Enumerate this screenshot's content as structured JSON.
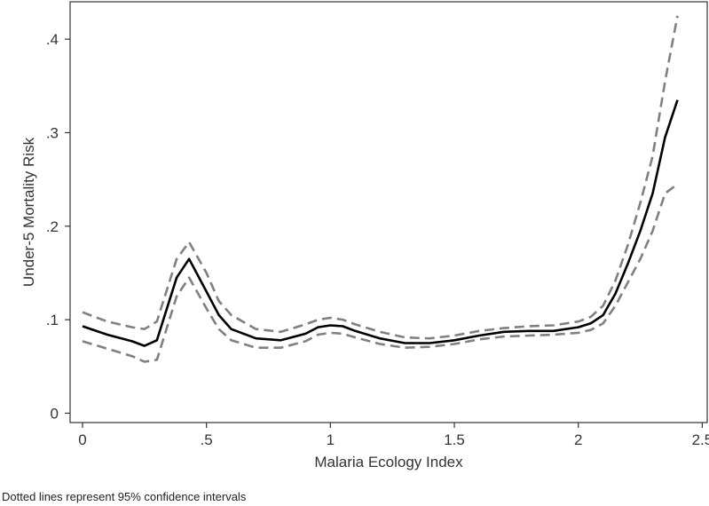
{
  "chart_data": {
    "type": "line",
    "xlabel": "Malaria Ecology Index",
    "ylabel": "Under-5 Mortality Risk",
    "xlim": [
      -0.05,
      2.52
    ],
    "ylim": [
      -0.01,
      0.44
    ],
    "xticks": [
      0,
      0.5,
      1,
      1.5,
      2,
      2.5
    ],
    "xtick_labels": [
      "0",
      ".5",
      "1",
      "1.5",
      "2",
      "2.5"
    ],
    "yticks": [
      0,
      0.1,
      0.2,
      0.3,
      0.4
    ],
    "ytick_labels": [
      "0",
      ".1",
      ".2",
      ".3",
      ".4"
    ],
    "grid": false,
    "note": "Dotted lines represent 95% confidence intervals",
    "series": [
      {
        "role": "estimate",
        "color": "#000000",
        "style": "solid",
        "points": [
          [
            0,
            0.093
          ],
          [
            0.1,
            0.084
          ],
          [
            0.2,
            0.077
          ],
          [
            0.25,
            0.072
          ],
          [
            0.3,
            0.078
          ],
          [
            0.38,
            0.145
          ],
          [
            0.43,
            0.165
          ],
          [
            0.5,
            0.13
          ],
          [
            0.55,
            0.105
          ],
          [
            0.6,
            0.09
          ],
          [
            0.7,
            0.08
          ],
          [
            0.8,
            0.078
          ],
          [
            0.9,
            0.085
          ],
          [
            0.95,
            0.092
          ],
          [
            1.0,
            0.094
          ],
          [
            1.05,
            0.093
          ],
          [
            1.1,
            0.088
          ],
          [
            1.2,
            0.08
          ],
          [
            1.3,
            0.075
          ],
          [
            1.4,
            0.075
          ],
          [
            1.5,
            0.078
          ],
          [
            1.6,
            0.083
          ],
          [
            1.7,
            0.087
          ],
          [
            1.8,
            0.088
          ],
          [
            1.9,
            0.088
          ],
          [
            2.0,
            0.092
          ],
          [
            2.05,
            0.096
          ],
          [
            2.1,
            0.105
          ],
          [
            2.15,
            0.128
          ],
          [
            2.2,
            0.16
          ],
          [
            2.25,
            0.195
          ],
          [
            2.3,
            0.235
          ],
          [
            2.35,
            0.295
          ],
          [
            2.4,
            0.335
          ]
        ]
      },
      {
        "role": "upper-95-ci",
        "color": "#808080",
        "style": "dashed",
        "points": [
          [
            0,
            0.108
          ],
          [
            0.05,
            0.103
          ],
          [
            0.1,
            0.098
          ],
          [
            0.2,
            0.092
          ],
          [
            0.25,
            0.09
          ],
          [
            0.3,
            0.098
          ],
          [
            0.38,
            0.165
          ],
          [
            0.43,
            0.183
          ],
          [
            0.5,
            0.15
          ],
          [
            0.55,
            0.12
          ],
          [
            0.6,
            0.105
          ],
          [
            0.7,
            0.09
          ],
          [
            0.8,
            0.087
          ],
          [
            0.9,
            0.095
          ],
          [
            0.95,
            0.1
          ],
          [
            1.0,
            0.102
          ],
          [
            1.05,
            0.1
          ],
          [
            1.1,
            0.095
          ],
          [
            1.2,
            0.087
          ],
          [
            1.3,
            0.081
          ],
          [
            1.4,
            0.08
          ],
          [
            1.5,
            0.083
          ],
          [
            1.6,
            0.088
          ],
          [
            1.7,
            0.091
          ],
          [
            1.8,
            0.093
          ],
          [
            1.9,
            0.094
          ],
          [
            2.0,
            0.098
          ],
          [
            2.05,
            0.103
          ],
          [
            2.1,
            0.115
          ],
          [
            2.15,
            0.142
          ],
          [
            2.2,
            0.18
          ],
          [
            2.25,
            0.225
          ],
          [
            2.3,
            0.275
          ],
          [
            2.35,
            0.355
          ],
          [
            2.4,
            0.425
          ]
        ]
      },
      {
        "role": "lower-95-ci",
        "color": "#808080",
        "style": "dashed",
        "points": [
          [
            0,
            0.077
          ],
          [
            0.1,
            0.069
          ],
          [
            0.2,
            0.061
          ],
          [
            0.25,
            0.055
          ],
          [
            0.3,
            0.057
          ],
          [
            0.38,
            0.125
          ],
          [
            0.43,
            0.145
          ],
          [
            0.5,
            0.112
          ],
          [
            0.55,
            0.09
          ],
          [
            0.6,
            0.078
          ],
          [
            0.7,
            0.07
          ],
          [
            0.8,
            0.07
          ],
          [
            0.9,
            0.077
          ],
          [
            0.95,
            0.084
          ],
          [
            1.0,
            0.086
          ],
          [
            1.05,
            0.085
          ],
          [
            1.1,
            0.081
          ],
          [
            1.2,
            0.074
          ],
          [
            1.3,
            0.07
          ],
          [
            1.4,
            0.071
          ],
          [
            1.5,
            0.074
          ],
          [
            1.6,
            0.079
          ],
          [
            1.7,
            0.082
          ],
          [
            1.8,
            0.083
          ],
          [
            1.9,
            0.084
          ],
          [
            2.0,
            0.086
          ],
          [
            2.05,
            0.089
          ],
          [
            2.1,
            0.096
          ],
          [
            2.15,
            0.115
          ],
          [
            2.2,
            0.14
          ],
          [
            2.25,
            0.165
          ],
          [
            2.3,
            0.195
          ],
          [
            2.35,
            0.235
          ],
          [
            2.4,
            0.245
          ]
        ]
      }
    ]
  }
}
